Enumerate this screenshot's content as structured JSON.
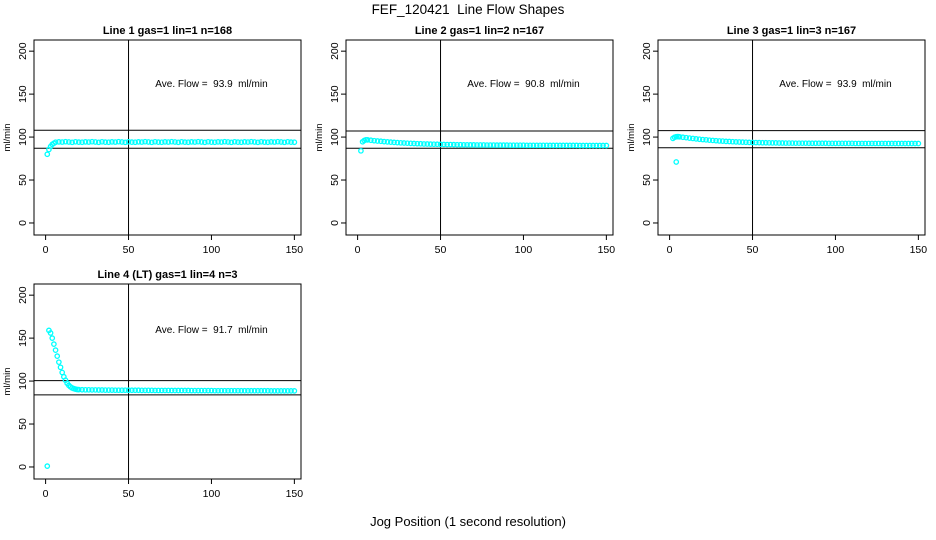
{
  "figure": {
    "title": "FEF_120421  Line Flow Shapes",
    "xlabel": "Jog Position (1 second resolution)",
    "colors": {
      "points": "#00ffff",
      "axis": "#000000",
      "background": "#ffffff"
    }
  },
  "chart_data": [
    {
      "type": "scatter",
      "title": "Line 1 gas=1 lin=1 n=168",
      "ylabel": "ml/min",
      "annotation": "Ave. Flow =  93.9  ml/min",
      "annotation_pos": [
        100,
        158
      ],
      "x_ticks": [
        0,
        50,
        100,
        150
      ],
      "y_ticks": [
        0,
        50,
        100,
        150,
        200
      ],
      "xlim": [
        -7,
        154
      ],
      "ylim": [
        -14,
        213
      ],
      "vline_x": 50,
      "hline_upper": 108,
      "hline_lower": 87,
      "points": [
        [
          1,
          80
        ],
        [
          2,
          85.5
        ],
        [
          3,
          89
        ],
        [
          4,
          91.5
        ],
        [
          5,
          92.8
        ],
        [
          6,
          94.0
        ],
        [
          8,
          94.4
        ],
        [
          10,
          94.2
        ],
        [
          12,
          94.6
        ],
        [
          14,
          94.3
        ],
        [
          16,
          93.9
        ],
        [
          18,
          94.5
        ],
        [
          20,
          94.1
        ],
        [
          22,
          94.0
        ],
        [
          24,
          94.4
        ],
        [
          26,
          94.2
        ],
        [
          28,
          94.6
        ],
        [
          30,
          94.3
        ],
        [
          32,
          93.9
        ],
        [
          34,
          94.5
        ],
        [
          36,
          94.1
        ],
        [
          38,
          94.0
        ],
        [
          40,
          94.4
        ],
        [
          42,
          94.2
        ],
        [
          44,
          94.6
        ],
        [
          46,
          94.3
        ],
        [
          48,
          93.9
        ],
        [
          50,
          94.5
        ],
        [
          52,
          94.1
        ],
        [
          54,
          94.0
        ],
        [
          56,
          94.4
        ],
        [
          58,
          94.2
        ],
        [
          60,
          94.6
        ],
        [
          62,
          94.3
        ],
        [
          64,
          93.9
        ],
        [
          66,
          94.5
        ],
        [
          68,
          94.1
        ],
        [
          70,
          94.0
        ],
        [
          72,
          94.4
        ],
        [
          74,
          94.2
        ],
        [
          76,
          94.6
        ],
        [
          78,
          94.3
        ],
        [
          80,
          93.9
        ],
        [
          82,
          94.5
        ],
        [
          84,
          94.1
        ],
        [
          86,
          94.0
        ],
        [
          88,
          94.4
        ],
        [
          90,
          94.2
        ],
        [
          92,
          94.6
        ],
        [
          94,
          94.3
        ],
        [
          96,
          93.9
        ],
        [
          98,
          94.5
        ],
        [
          100,
          94.1
        ],
        [
          102,
          94.0
        ],
        [
          104,
          94.4
        ],
        [
          106,
          94.2
        ],
        [
          108,
          94.6
        ],
        [
          110,
          94.3
        ],
        [
          112,
          93.9
        ],
        [
          114,
          94.5
        ],
        [
          116,
          94.1
        ],
        [
          118,
          94.0
        ],
        [
          120,
          94.4
        ],
        [
          122,
          94.2
        ],
        [
          124,
          94.6
        ],
        [
          126,
          94.3
        ],
        [
          128,
          93.9
        ],
        [
          130,
          94.5
        ],
        [
          132,
          94.1
        ],
        [
          134,
          94.0
        ],
        [
          136,
          94.4
        ],
        [
          138,
          94.2
        ],
        [
          140,
          94.6
        ],
        [
          142,
          94.3
        ],
        [
          144,
          93.9
        ],
        [
          146,
          94.5
        ],
        [
          148,
          94.1
        ],
        [
          150,
          94.0
        ]
      ]
    },
    {
      "type": "scatter",
      "title": "Line 2 gas=1 lin=2 n=167",
      "ylabel": "ml/min",
      "annotation": "Ave. Flow =  90.8  ml/min",
      "annotation_pos": [
        100,
        158
      ],
      "x_ticks": [
        0,
        50,
        100,
        150
      ],
      "y_ticks": [
        0,
        50,
        100,
        150,
        200
      ],
      "xlim": [
        -7,
        154
      ],
      "ylim": [
        -14,
        213
      ],
      "vline_x": 50,
      "hline_upper": 107,
      "hline_lower": 87,
      "points": [
        [
          2,
          84
        ],
        [
          3,
          94.5
        ],
        [
          4,
          96
        ],
        [
          5,
          96.8
        ],
        [
          6,
          96.7
        ],
        [
          8,
          96.3
        ],
        [
          10,
          95.8
        ],
        [
          12,
          95.4
        ],
        [
          14,
          95.1
        ],
        [
          16,
          94.7
        ],
        [
          18,
          94.4
        ],
        [
          20,
          94.1
        ],
        [
          22,
          93.8
        ],
        [
          24,
          93.5
        ],
        [
          26,
          93.3
        ],
        [
          28,
          93.1
        ],
        [
          30,
          92.9
        ],
        [
          32,
          92.7
        ],
        [
          34,
          92.5
        ],
        [
          36,
          92.3
        ],
        [
          38,
          92.2
        ],
        [
          40,
          92.0
        ],
        [
          42,
          91.9
        ],
        [
          44,
          91.8
        ],
        [
          46,
          91.7
        ],
        [
          48,
          91.6
        ],
        [
          50,
          91.5
        ],
        [
          52,
          91.4
        ],
        [
          54,
          91.3
        ],
        [
          56,
          91.3
        ],
        [
          58,
          91.2
        ],
        [
          60,
          91.1
        ],
        [
          62,
          91.1
        ],
        [
          64,
          91.0
        ],
        [
          66,
          91.0
        ],
        [
          68,
          90.9
        ],
        [
          70,
          90.9
        ],
        [
          72,
          90.8
        ],
        [
          74,
          90.8
        ],
        [
          76,
          90.8
        ],
        [
          78,
          90.7
        ],
        [
          80,
          90.7
        ],
        [
          82,
          90.7
        ],
        [
          84,
          90.6
        ],
        [
          86,
          90.6
        ],
        [
          88,
          90.6
        ],
        [
          90,
          90.6
        ],
        [
          92,
          90.5
        ],
        [
          94,
          90.5
        ],
        [
          96,
          90.5
        ],
        [
          98,
          90.5
        ],
        [
          100,
          90.5
        ],
        [
          102,
          90.4
        ],
        [
          104,
          90.4
        ],
        [
          106,
          90.4
        ],
        [
          108,
          90.4
        ],
        [
          110,
          90.4
        ],
        [
          112,
          90.4
        ],
        [
          114,
          90.4
        ],
        [
          116,
          90.3
        ],
        [
          118,
          90.3
        ],
        [
          120,
          90.3
        ],
        [
          122,
          90.3
        ],
        [
          124,
          90.3
        ],
        [
          126,
          90.3
        ],
        [
          128,
          90.3
        ],
        [
          130,
          90.3
        ],
        [
          132,
          90.3
        ],
        [
          134,
          90.2
        ],
        [
          136,
          90.2
        ],
        [
          138,
          90.2
        ],
        [
          140,
          90.2
        ],
        [
          142,
          90.2
        ],
        [
          144,
          90.2
        ],
        [
          146,
          90.2
        ],
        [
          148,
          90.2
        ],
        [
          150,
          90.2
        ]
      ]
    },
    {
      "type": "scatter",
      "title": "Line 3 gas=1 lin=3 n=167",
      "ylabel": "ml/min",
      "annotation": "Ave. Flow =  93.9  ml/min",
      "annotation_pos": [
        100,
        158
      ],
      "x_ticks": [
        0,
        50,
        100,
        150
      ],
      "y_ticks": [
        0,
        50,
        100,
        150,
        200
      ],
      "xlim": [
        -7,
        154
      ],
      "ylim": [
        -14,
        213
      ],
      "vline_x": 50,
      "hline_upper": 107.5,
      "hline_lower": 87.5,
      "points": [
        [
          4,
          71
        ],
        [
          2,
          98.5
        ],
        [
          3,
          99.8
        ],
        [
          4,
          100.4
        ],
        [
          5,
          100.5
        ],
        [
          6,
          100.3
        ],
        [
          8,
          99.8
        ],
        [
          10,
          99.3
        ],
        [
          12,
          98.8
        ],
        [
          14,
          98.4
        ],
        [
          16,
          97.9
        ],
        [
          18,
          97.5
        ],
        [
          20,
          97.1
        ],
        [
          22,
          96.8
        ],
        [
          24,
          96.4
        ],
        [
          26,
          96.1
        ],
        [
          28,
          95.8
        ],
        [
          30,
          95.5
        ],
        [
          32,
          95.3
        ],
        [
          34,
          95.0
        ],
        [
          36,
          94.8
        ],
        [
          38,
          94.6
        ],
        [
          40,
          94.4
        ],
        [
          42,
          94.3
        ],
        [
          44,
          94.1
        ],
        [
          46,
          94.0
        ],
        [
          48,
          93.8
        ],
        [
          50,
          93.7
        ],
        [
          52,
          93.6
        ],
        [
          54,
          93.5
        ],
        [
          56,
          93.4
        ],
        [
          58,
          93.4
        ],
        [
          60,
          93.3
        ],
        [
          62,
          93.2
        ],
        [
          64,
          93.2
        ],
        [
          66,
          93.1
        ],
        [
          68,
          93.1
        ],
        [
          70,
          93.0
        ],
        [
          72,
          93.0
        ],
        [
          74,
          93.0
        ],
        [
          76,
          92.9
        ],
        [
          78,
          92.9
        ],
        [
          80,
          92.9
        ],
        [
          82,
          92.9
        ],
        [
          84,
          92.8
        ],
        [
          86,
          92.8
        ],
        [
          88,
          92.8
        ],
        [
          90,
          92.8
        ],
        [
          92,
          92.8
        ],
        [
          94,
          92.8
        ],
        [
          96,
          92.7
        ],
        [
          98,
          92.7
        ],
        [
          100,
          92.7
        ],
        [
          102,
          92.7
        ],
        [
          104,
          92.7
        ],
        [
          106,
          92.7
        ],
        [
          108,
          92.7
        ],
        [
          110,
          92.7
        ],
        [
          112,
          92.6
        ],
        [
          114,
          92.6
        ],
        [
          116,
          92.6
        ],
        [
          118,
          92.6
        ],
        [
          120,
          92.6
        ],
        [
          122,
          92.6
        ],
        [
          124,
          92.6
        ],
        [
          126,
          92.6
        ],
        [
          128,
          92.6
        ],
        [
          130,
          92.6
        ],
        [
          132,
          92.5
        ],
        [
          134,
          92.5
        ],
        [
          136,
          92.5
        ],
        [
          138,
          92.5
        ],
        [
          140,
          92.5
        ],
        [
          142,
          92.5
        ],
        [
          144,
          92.5
        ],
        [
          146,
          92.5
        ],
        [
          148,
          92.5
        ],
        [
          150,
          92.5
        ]
      ]
    },
    {
      "type": "scatter",
      "title": "Line 4 (LT) gas=1 lin=4 n=3",
      "ylabel": "ml/min",
      "annotation": "Ave. Flow =  91.7  ml/min",
      "annotation_pos": [
        100,
        156
      ],
      "x_ticks": [
        0,
        50,
        100,
        150
      ],
      "y_ticks": [
        0,
        50,
        100,
        150,
        200
      ],
      "xlim": [
        -7,
        154
      ],
      "ylim": [
        -14,
        213
      ],
      "vline_x": 50,
      "hline_upper": 100.5,
      "hline_lower": 84,
      "points": [
        [
          1,
          1
        ],
        [
          2,
          159
        ],
        [
          3,
          156
        ],
        [
          4,
          150
        ],
        [
          5,
          143
        ],
        [
          6,
          136
        ],
        [
          7,
          129
        ],
        [
          8,
          122
        ],
        [
          9,
          116
        ],
        [
          10,
          110
        ],
        [
          11,
          105
        ],
        [
          12,
          101
        ],
        [
          13,
          97.5
        ],
        [
          14,
          95
        ],
        [
          15,
          93.2
        ],
        [
          16,
          92
        ],
        [
          17,
          91.2
        ],
        [
          18,
          90.6
        ],
        [
          19,
          90.2
        ],
        [
          20,
          90
        ],
        [
          22,
          89.9
        ],
        [
          24,
          89.8
        ],
        [
          26,
          89.8
        ],
        [
          28,
          89.7
        ],
        [
          30,
          89.7
        ],
        [
          32,
          89.6
        ],
        [
          34,
          89.6
        ],
        [
          36,
          89.5
        ],
        [
          38,
          89.5
        ],
        [
          40,
          89.5
        ],
        [
          42,
          89.4
        ],
        [
          44,
          89.4
        ],
        [
          46,
          89.4
        ],
        [
          48,
          89.4
        ],
        [
          50,
          89.3
        ],
        [
          52,
          89.3
        ],
        [
          54,
          89.3
        ],
        [
          56,
          89.3
        ],
        [
          58,
          89.2
        ],
        [
          60,
          89.2
        ],
        [
          62,
          89.2
        ],
        [
          64,
          89.2
        ],
        [
          66,
          89.1
        ],
        [
          68,
          89.1
        ],
        [
          70,
          89.1
        ],
        [
          72,
          89.1
        ],
        [
          74,
          89.1
        ],
        [
          76,
          89.0
        ],
        [
          78,
          89.0
        ],
        [
          80,
          89.0
        ],
        [
          82,
          89.0
        ],
        [
          84,
          89.0
        ],
        [
          86,
          89.0
        ],
        [
          88,
          88.9
        ],
        [
          90,
          88.9
        ],
        [
          92,
          88.9
        ],
        [
          94,
          88.9
        ],
        [
          96,
          88.9
        ],
        [
          98,
          88.9
        ],
        [
          100,
          88.9
        ],
        [
          102,
          88.8
        ],
        [
          104,
          88.8
        ],
        [
          106,
          88.8
        ],
        [
          108,
          88.8
        ],
        [
          110,
          88.8
        ],
        [
          112,
          88.8
        ],
        [
          114,
          88.8
        ],
        [
          116,
          88.8
        ],
        [
          118,
          88.7
        ],
        [
          120,
          88.7
        ],
        [
          122,
          88.7
        ],
        [
          124,
          88.7
        ],
        [
          126,
          88.7
        ],
        [
          128,
          88.7
        ],
        [
          130,
          88.7
        ],
        [
          132,
          88.7
        ],
        [
          134,
          88.7
        ],
        [
          136,
          88.6
        ],
        [
          138,
          88.6
        ],
        [
          140,
          88.6
        ],
        [
          142,
          88.6
        ],
        [
          144,
          88.6
        ],
        [
          146,
          88.6
        ],
        [
          148,
          88.6
        ],
        [
          150,
          88.6
        ]
      ]
    }
  ]
}
